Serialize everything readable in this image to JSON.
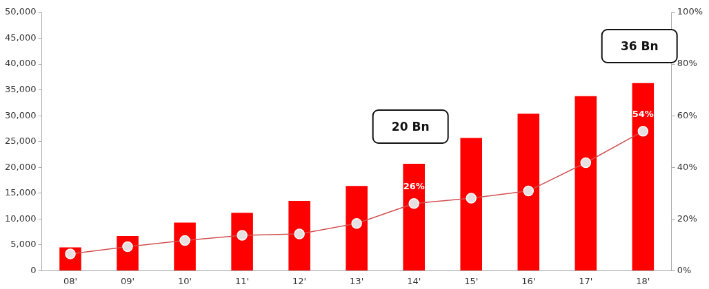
{
  "chart_data": {
    "type": "bar",
    "categories": [
      "08'",
      "09'",
      "10'",
      "11'",
      "12'",
      "13'",
      "14'",
      "15'",
      "16'",
      "17'",
      "18'"
    ],
    "series": [
      {
        "color": "#ff0000",
        "values": [
          4500,
          6700,
          9300,
          11200,
          13500,
          16400,
          20700,
          25700,
          30400,
          33800,
          36300
        ]
      },
      {
        "type": "line",
        "axis": "y2",
        "color": "#d05050",
        "values": [
          6.5,
          9.3,
          11.7,
          13.7,
          14.2,
          18.3,
          26,
          28.1,
          30.9,
          41.8,
          54
        ],
        "value_labels": [
          null,
          null,
          null,
          null,
          null,
          null,
          "26%",
          null,
          null,
          null,
          "54%"
        ]
      }
    ],
    "ylim": [
      0,
      50000
    ],
    "yticks": [
      {
        "value": 0,
        "label": "0"
      },
      {
        "value": 5000,
        "label": "5,000"
      },
      {
        "value": 10000,
        "label": "10,000"
      },
      {
        "value": 15000,
        "label": "15,000"
      },
      {
        "value": 20000,
        "label": "20,000"
      },
      {
        "value": 25000,
        "label": "25,000"
      },
      {
        "value": 30000,
        "label": "30,000"
      },
      {
        "value": 35000,
        "label": "35,000"
      },
      {
        "value": 40000,
        "label": "40,000"
      },
      {
        "value": 45000,
        "label": "45,000"
      },
      {
        "value": 50000,
        "label": "50,000"
      }
    ],
    "y2lim": [
      0,
      100
    ],
    "y2ticks": [
      {
        "value": 0,
        "label": "0%"
      },
      {
        "value": 20,
        "label": "20%"
      },
      {
        "value": 40,
        "label": "40%"
      },
      {
        "value": 60,
        "label": "60%"
      },
      {
        "value": 80,
        "label": "80%"
      },
      {
        "value": 100,
        "label": "100%"
      }
    ],
    "annotations": [
      {
        "text": "20 Bn",
        "x": "14'",
        "y": 20700
      },
      {
        "text": "36 Bn",
        "x": "18'",
        "y": 36300
      }
    ],
    "marker": "circle",
    "grid": false,
    "legend": false
  }
}
